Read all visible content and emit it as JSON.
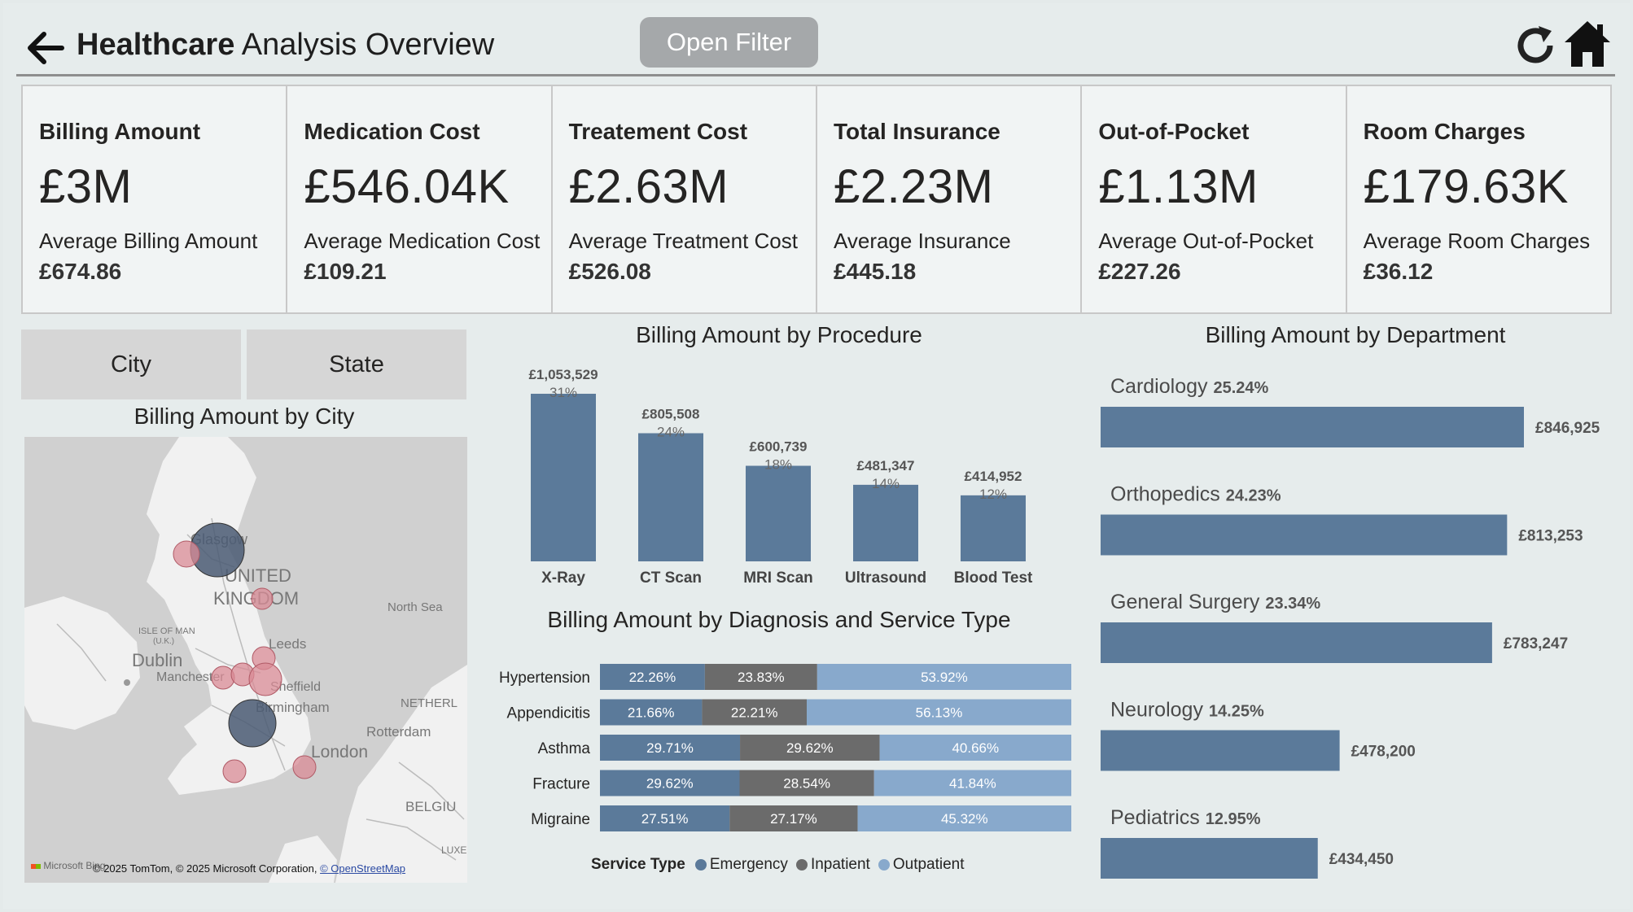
{
  "header": {
    "title_bold": "Healthcare",
    "title_rest": "Analysis Overview",
    "filter_button": "Open Filter"
  },
  "kpis": [
    {
      "title": "Billing Amount",
      "value": "£3M",
      "sub_label": "Average Billing Amount",
      "sub_value": "£674.86"
    },
    {
      "title": "Medication Cost",
      "value": "£546.04K",
      "sub_label": "Average Medication Cost",
      "sub_value": "£109.21"
    },
    {
      "title": "Treatement Cost",
      "value": "£2.63M",
      "sub_label": "Average Treatment Cost",
      "sub_value": "£526.08"
    },
    {
      "title": "Total Insurance",
      "value": "£2.23M",
      "sub_label": "Average Insurance",
      "sub_value": "£445.18"
    },
    {
      "title": "Out-of-Pocket",
      "value": "£1.13M",
      "sub_label": "Average Out-of-Pocket",
      "sub_value": "£227.26"
    },
    {
      "title": "Room Charges",
      "value": "£179.63K",
      "sub_label": "Average Room Charges",
      "sub_value": "£36.12"
    }
  ],
  "toggles": {
    "city": "City",
    "state": "State"
  },
  "map": {
    "title": "Billing Amount by City",
    "labels": {
      "glasgow": "Glasgow",
      "united": "UNITED",
      "kingdom": "KINGDOM",
      "north_sea": "North Sea",
      "isle_of_man": "ISLE OF MAN",
      "uk": "(U.K.)",
      "dublin": "Dublin",
      "leeds": "Leeds",
      "manchester": "Manchester",
      "sheffield": "Sheffield",
      "birmingham": "Birmingham",
      "netherlands": "NETHERL",
      "rotterdam": "Rotterdam",
      "london": "London",
      "belgium": "BELGIU",
      "luxe": "LUXE"
    },
    "attribution": "© 2025 TomTom, © 2025 Microsoft Corporation,",
    "attribution_link": "© OpenStreetMap",
    "ms_logo": "Microsoft Bing"
  },
  "colors": {
    "bar": "#5b7a9a",
    "emergency": "#5b7a9a",
    "inpatient": "#6b6b6b",
    "outpatient": "#88a9cc",
    "bubble_large": "#4a5a73",
    "bubble_small": "#d98b96"
  },
  "chart_data": [
    {
      "type": "bar",
      "title": "Billing Amount by Procedure",
      "categories": [
        "X-Ray",
        "CT Scan",
        "MRI Scan",
        "Ultrasound",
        "Blood Test"
      ],
      "values": [
        1053529,
        805508,
        600739,
        481347,
        414952
      ],
      "value_labels": [
        "£1,053,529",
        "£805,508",
        "£600,739",
        "£481,347",
        "£414,952"
      ],
      "percent_labels": [
        "31%",
        "24%",
        "18%",
        "14%",
        "12%"
      ]
    },
    {
      "type": "bar",
      "title": "Billing Amount by Diagnosis and Service Type",
      "stacked": "100%",
      "orientation": "horizontal",
      "categories": [
        "Hypertension",
        "Appendicitis",
        "Asthma",
        "Fracture",
        "Migraine"
      ],
      "legend_title": "Service Type",
      "series": [
        {
          "name": "Emergency",
          "values": [
            22.26,
            21.66,
            29.71,
            29.62,
            27.51
          ]
        },
        {
          "name": "Inpatient",
          "values": [
            23.83,
            22.21,
            29.62,
            28.54,
            27.17
          ]
        },
        {
          "name": "Outpatient",
          "values": [
            53.92,
            56.13,
            40.66,
            41.84,
            45.32
          ]
        }
      ],
      "legend_placement": "bottom"
    },
    {
      "type": "bar",
      "orientation": "horizontal",
      "title": "Billing Amount by Department",
      "categories": [
        "Cardiology",
        "Orthopedics",
        "General Surgery",
        "Neurology",
        "Pediatrics"
      ],
      "values": [
        846925,
        813253,
        783247,
        478200,
        434450
      ],
      "value_labels": [
        "£846,925",
        "£813,253",
        "£783,247",
        "£478,200",
        "£434,450"
      ],
      "percent_labels": [
        "25.24%",
        "24.23%",
        "23.34%",
        "14.25%",
        "12.95%"
      ]
    }
  ]
}
